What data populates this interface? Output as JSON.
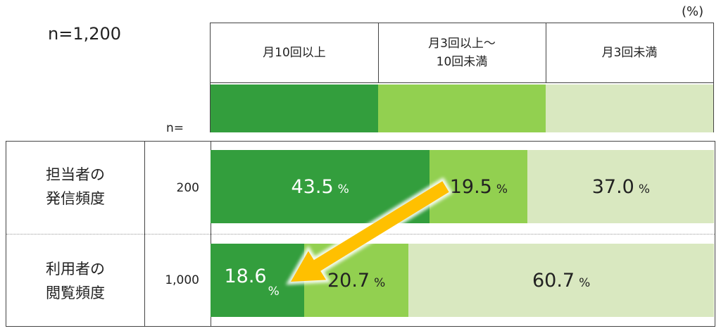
{
  "unit_label": "(%)",
  "sample_label": "n=1,200",
  "n_header": "n=",
  "legend": [
    {
      "line1": "月10回以上",
      "line2": "",
      "color": "#339e3d"
    },
    {
      "line1": "月3回以上～",
      "line2": "10回未満",
      "color": "#92d050"
    },
    {
      "line1": "月3回未満",
      "line2": "",
      "color": "#d9e8c0"
    }
  ],
  "chart_data": {
    "type": "bar",
    "stacked": true,
    "orientation": "horizontal",
    "categories": [
      "担当者の\n発信頻度",
      "利用者の\n閲覧頻度"
    ],
    "n": [
      "200",
      "1,000"
    ],
    "series": [
      {
        "name": "月10回以上",
        "values": [
          43.5,
          18.6
        ],
        "labels": [
          "43.5",
          "18.6"
        ]
      },
      {
        "name": "月3回以上～10回未満",
        "values": [
          19.5,
          20.7
        ],
        "labels": [
          "19.5",
          "20.7"
        ]
      },
      {
        "name": "月3回未満",
        "values": [
          37.0,
          60.7
        ],
        "labels": [
          "37.0",
          "60.7"
        ]
      }
    ],
    "percent_sign": "%",
    "xlim": [
      0,
      100
    ],
    "annotation": "arrow from 19.5 to 18.6"
  },
  "arrow_color": "#ffc000"
}
